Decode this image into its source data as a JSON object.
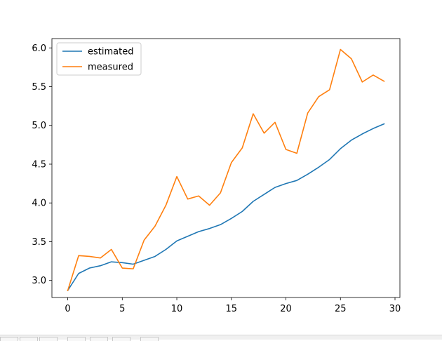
{
  "chart_data": {
    "type": "line",
    "title": "",
    "xlabel": "",
    "ylabel": "",
    "xlim": [
      -1.45,
      30.45
    ],
    "ylim": [
      2.78,
      6.12
    ],
    "xticks": [
      0,
      5,
      10,
      15,
      20,
      25,
      30
    ],
    "xtick_labels": [
      "0",
      "5",
      "10",
      "15",
      "20",
      "25",
      "30"
    ],
    "yticks": [
      3.0,
      3.5,
      4.0,
      4.5,
      5.0,
      5.5,
      6.0
    ],
    "ytick_labels": [
      "3.0",
      "3.5",
      "4.0",
      "4.5",
      "5.0",
      "5.5",
      "6.0"
    ],
    "grid": false,
    "legend_position": "top-left",
    "x": [
      0,
      1,
      2,
      3,
      4,
      5,
      6,
      7,
      8,
      9,
      10,
      11,
      12,
      13,
      14,
      15,
      16,
      17,
      18,
      19,
      20,
      21,
      22,
      23,
      24,
      25,
      26,
      27,
      28,
      29
    ],
    "series": [
      {
        "name": "estimated",
        "color": "#1f77b4",
        "values": [
          2.87,
          3.09,
          3.16,
          3.19,
          3.24,
          3.23,
          3.21,
          3.26,
          3.31,
          3.4,
          3.51,
          3.57,
          3.63,
          3.67,
          3.72,
          3.8,
          3.89,
          4.02,
          4.11,
          4.2,
          4.25,
          4.29,
          4.37,
          4.46,
          4.56,
          4.7,
          4.81,
          4.89,
          4.96,
          5.02
        ]
      },
      {
        "name": "measured",
        "color": "#ff7f0e",
        "values": [
          2.87,
          3.32,
          3.31,
          3.29,
          3.4,
          3.16,
          3.15,
          3.52,
          3.7,
          3.97,
          4.34,
          4.05,
          4.09,
          3.97,
          4.13,
          4.52,
          4.71,
          5.15,
          4.9,
          5.04,
          4.69,
          4.64,
          5.16,
          5.37,
          5.46,
          5.98,
          5.86,
          5.56,
          5.65,
          5.57
        ]
      }
    ]
  }
}
